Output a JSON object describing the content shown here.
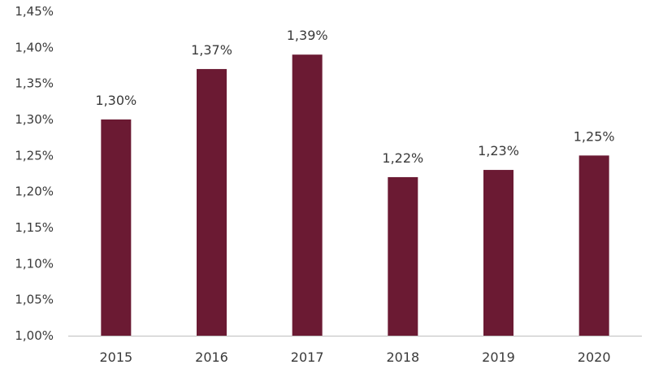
{
  "chart_data": {
    "type": "bar",
    "title": "",
    "xlabel": "",
    "ylabel": "",
    "categories": [
      "2015",
      "2016",
      "2017",
      "2018",
      "2019",
      "2020"
    ],
    "values": [
      1.3,
      1.37,
      1.39,
      1.22,
      1.23,
      1.25
    ],
    "data_labels": [
      "1,30%",
      "1,37%",
      "1,39%",
      "1,22%",
      "1,23%",
      "1,25%"
    ],
    "ylim": [
      1.0,
      1.45
    ],
    "yticks": [
      1.0,
      1.05,
      1.1,
      1.15,
      1.2,
      1.25,
      1.3,
      1.35,
      1.4,
      1.45
    ],
    "ytick_labels": [
      "1,00%",
      "1,05%",
      "1,10%",
      "1,15%",
      "1,20%",
      "1,25%",
      "1,30%",
      "1,35%",
      "1,40%",
      "1,45%"
    ],
    "grid": false,
    "legend": "none",
    "bar_color": "#6b1a33"
  }
}
